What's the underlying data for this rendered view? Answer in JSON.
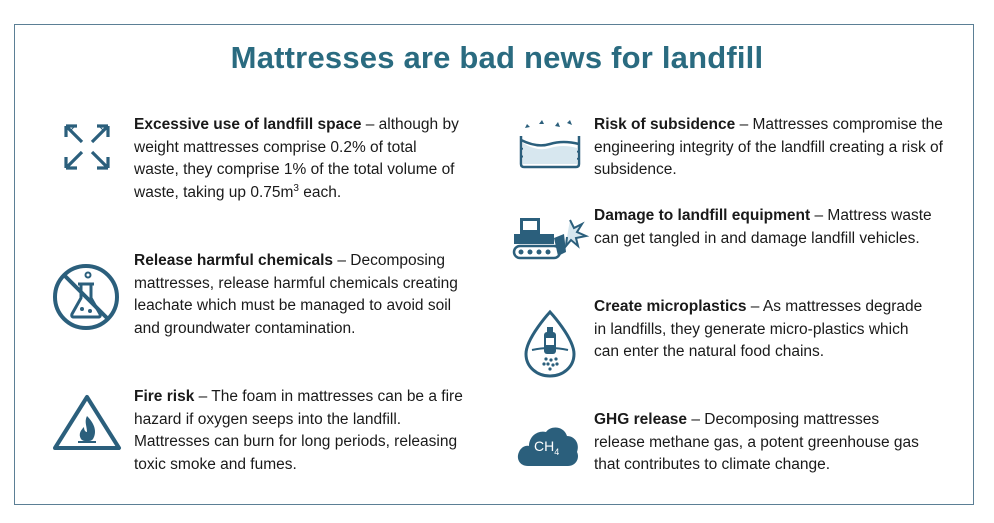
{
  "title": "Mattresses are bad news for landfill",
  "colors": {
    "accent": "#2a6b80",
    "icon": "#2b5f7c",
    "border": "#5b7f95"
  },
  "items": [
    {
      "icon": "expand-arrows-icon",
      "heading": "Excessive use of landfill space",
      "body_pre": " – although by weight mattresses comprise 0.2% of total waste, they comprise 1% of the total volume of waste, taking up 0.75m",
      "body_sup": "3",
      "body_post": " each."
    },
    {
      "icon": "no-chemicals-icon",
      "heading": "Release harmful chemicals",
      "body": " – Decomposing mattresses, release harmful chemicals creating leachate which must be managed to avoid soil and groundwater contamination."
    },
    {
      "icon": "fire-warning-icon",
      "heading": "Fire risk",
      "body": " – The foam in mattresses can be a fire hazard if oxygen seeps into the landfill. Mattresses can burn for long periods, releasing toxic smoke and fumes."
    },
    {
      "icon": "subsidence-icon",
      "heading": "Risk of subsidence",
      "body": " – Mattresses compromise the engineering integrity of the landfill creating a risk of subsidence."
    },
    {
      "icon": "bulldozer-icon",
      "heading": "Damage to landfill equipment",
      "body": " – Mattress waste can get tangled in and damage landfill vehicles."
    },
    {
      "icon": "microplastics-drop-icon",
      "heading": "Create microplastics",
      "body": " – As mattresses degrade in landfills, they generate micro-plastics which can enter the natural food chains."
    },
    {
      "icon": "methane-cloud-icon",
      "heading": "GHG release",
      "body": " – Decomposing mattresses release methane gas, a potent greenhouse gas that contributes to climate change.",
      "icon_label": "CH",
      "icon_label_sub": "4"
    }
  ]
}
